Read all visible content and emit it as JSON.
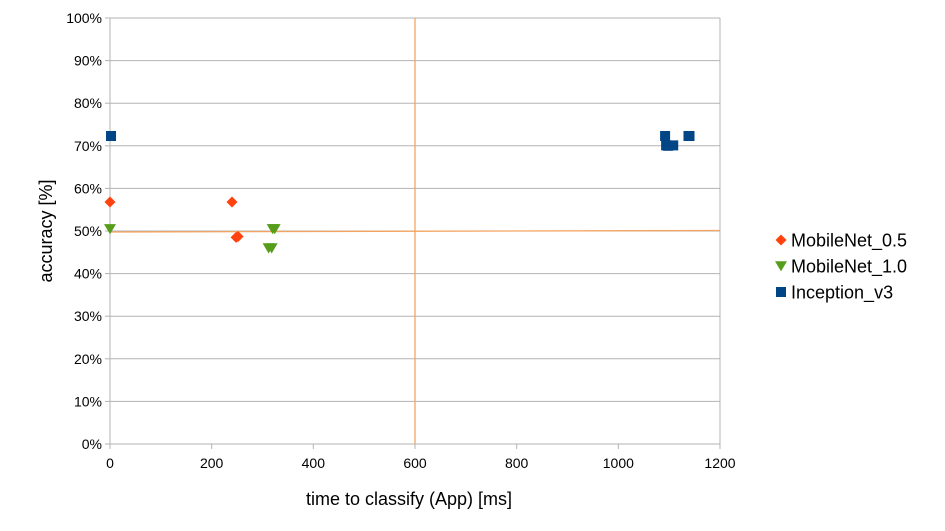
{
  "chart_data": {
    "type": "scatter",
    "xlabel": "time to classify (App) [ms]",
    "ylabel": "accuracy [%]",
    "xlim": [
      0,
      1200
    ],
    "ylim": [
      0,
      100
    ],
    "x_ticks": [
      "0",
      "200",
      "400",
      "600",
      "800",
      "1000",
      "1200"
    ],
    "y_ticks": [
      "0%",
      "10%",
      "20%",
      "30%",
      "40%",
      "50%",
      "60%",
      "70%",
      "80%",
      "90%",
      "100%"
    ],
    "grid": "horizontal",
    "legend_position": "right",
    "reference_lines": {
      "x": 600,
      "y": 50,
      "color": "#f4a460"
    },
    "series": [
      {
        "name": "MobileNet_0.5",
        "marker": "diamond",
        "color": "#ff420e",
        "points": [
          [
            0,
            56.8
          ],
          [
            240,
            56.8
          ],
          [
            248,
            48.5
          ],
          [
            252,
            48.7
          ]
        ]
      },
      {
        "name": "MobileNet_1.0",
        "marker": "triangle-down",
        "color": "#579d1c",
        "points": [
          [
            0,
            50.5
          ],
          [
            312,
            46.0
          ],
          [
            318,
            46.0
          ],
          [
            320,
            50.5
          ],
          [
            324,
            50.5
          ]
        ]
      },
      {
        "name": "Inception_v3",
        "marker": "square",
        "color": "#004586",
        "points": [
          [
            2,
            72.3
          ],
          [
            1092,
            72.3
          ],
          [
            1094,
            70.1
          ],
          [
            1098,
            70.0
          ],
          [
            1108,
            70.1
          ],
          [
            1138,
            72.3
          ],
          [
            1140,
            72.3
          ]
        ]
      }
    ]
  }
}
